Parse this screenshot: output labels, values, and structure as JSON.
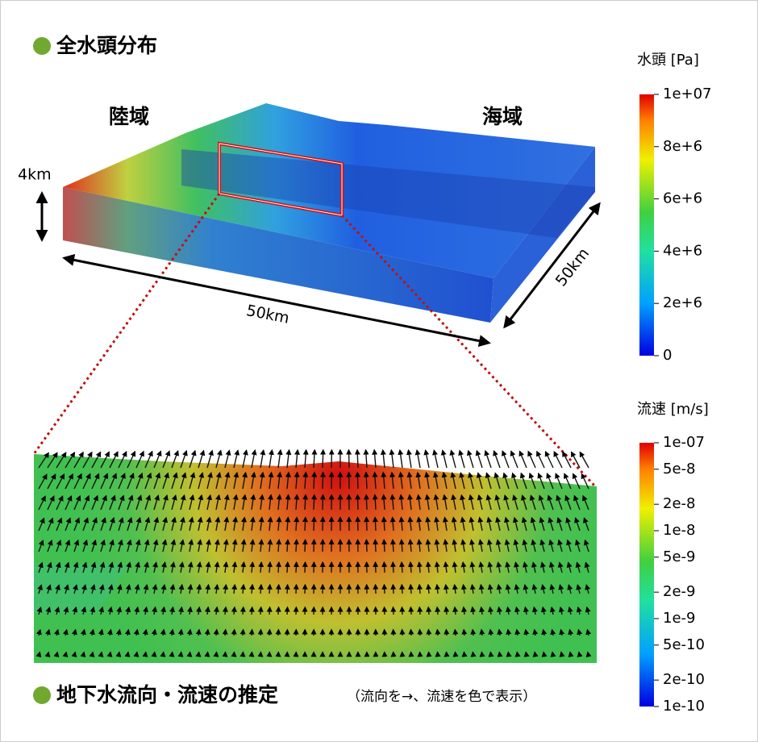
{
  "top": {
    "title": "全水頭分布",
    "land": "陸域",
    "sea": "海域",
    "depth": "4km",
    "width": "50km",
    "length": "50km"
  },
  "head_colorbar": {
    "title": "水頭 [Pa]",
    "ticks": [
      "1e+07",
      "8e+6",
      "6e+6",
      "4e+6",
      "2e+6",
      "0"
    ]
  },
  "velocity_colorbar": {
    "title": "流速 [m/s]",
    "ticks": [
      "1e-07",
      "5e-8",
      "2e-8",
      "1e-8",
      "5e-9",
      "2e-9",
      "1e-9",
      "5e-10",
      "2e-10",
      "1e-10"
    ]
  },
  "bottom": {
    "title": "地下水流向・流速の推定",
    "note": "（流向を→、流速を色で表示）"
  }
}
